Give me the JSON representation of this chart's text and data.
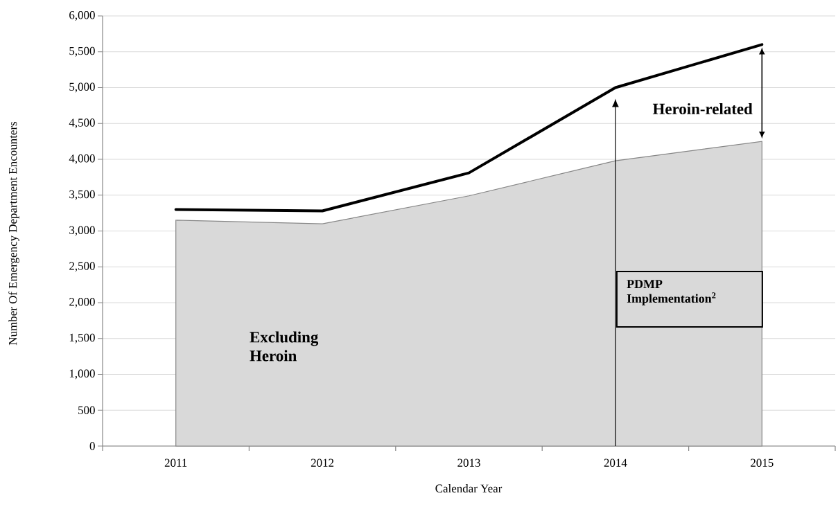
{
  "chart_data": {
    "type": "area",
    "xlabel": "Calendar Year",
    "ylabel": "Number Of Emergency Department Encounters",
    "categories": [
      "2011",
      "2012",
      "2013",
      "2014",
      "2015"
    ],
    "series": [
      {
        "color": "#d9d9d9",
        "values": [
          3150,
          3100,
          3490,
          3980,
          4250
        ]
      },
      {
        "type": "line",
        "color": "#000000",
        "values": [
          3300,
          3280,
          3810,
          5000,
          5600
        ]
      }
    ],
    "ylim": [
      0,
      6000
    ],
    "yticks": [
      0,
      500,
      {
        "value": 1000,
        "label": "1,000"
      },
      {
        "value": 1500,
        "label": "1,500"
      },
      {
        "value": 2000,
        "label": "2,000"
      },
      {
        "value": 2500,
        "label": "2,500"
      },
      {
        "value": 3000,
        "label": "3,000"
      },
      {
        "value": 3500,
        "label": "3,500"
      },
      {
        "value": 4000,
        "label": "4,000"
      },
      {
        "value": 4500,
        "label": "4,500"
      },
      {
        "value": 5000,
        "label": "5,000"
      },
      {
        "value": 5500,
        "label": "5,500"
      },
      {
        "value": 6000,
        "label": "6,000"
      }
    ],
    "grid": "y",
    "ref_lines": [
      {
        "axis": "x",
        "value": "2014",
        "label": "PDMP Implementation$^{2}$"
      }
    ],
    "annotations": [
      "Heroin-related",
      "Excluding Heroin"
    ]
  }
}
